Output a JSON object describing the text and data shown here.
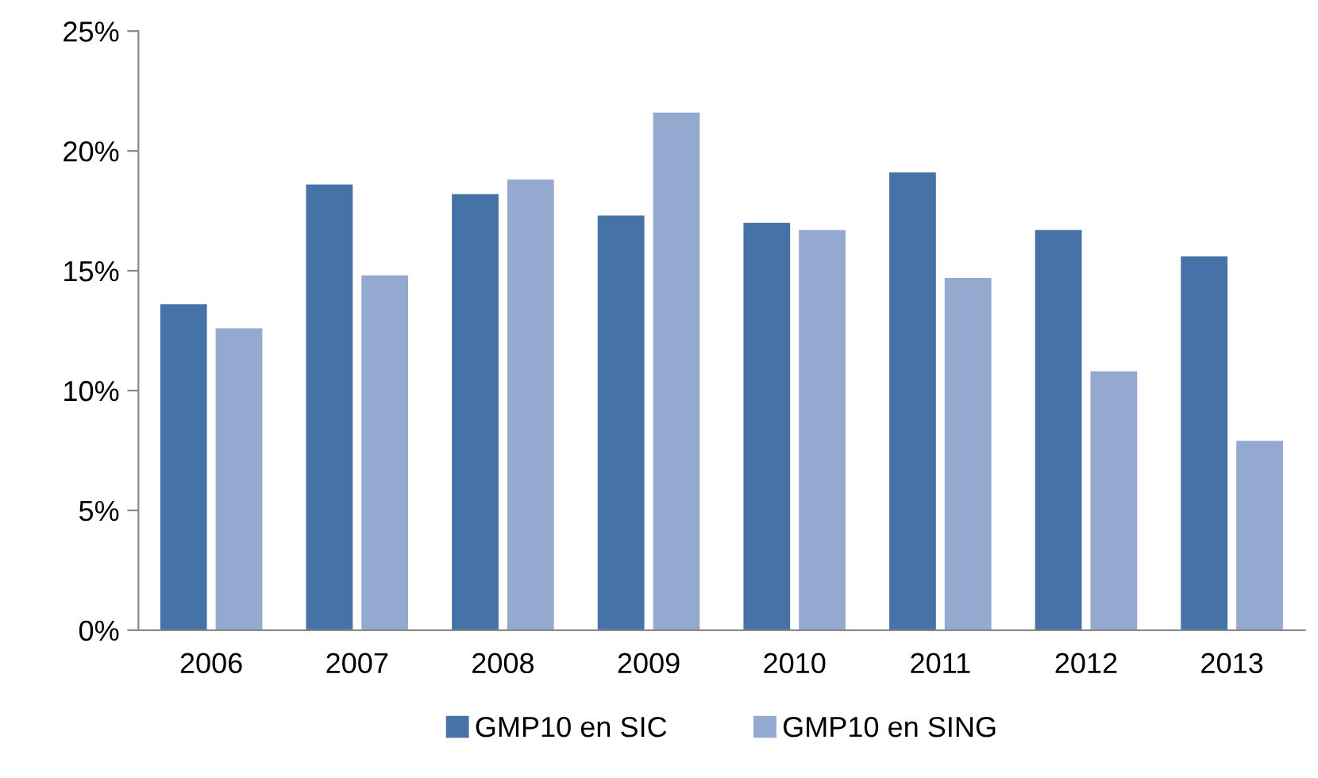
{
  "chart_data": {
    "type": "bar",
    "categories": [
      "2006",
      "2007",
      "2008",
      "2009",
      "2010",
      "2011",
      "2012",
      "2013"
    ],
    "series": [
      {
        "name": "GMP10 en SIC",
        "color": "#4572a7",
        "values": [
          13.6,
          18.6,
          18.2,
          17.3,
          17.0,
          19.1,
          16.7,
          15.6
        ]
      },
      {
        "name": "GMP10 en SING",
        "color": "#93a9cf",
        "values": [
          12.6,
          14.8,
          18.8,
          21.6,
          16.7,
          14.7,
          10.8,
          7.9
        ]
      }
    ],
    "ylim": [
      0,
      25
    ],
    "yticks": [
      {
        "value": 0,
        "label": "0%"
      },
      {
        "value": 5,
        "label": "5%"
      },
      {
        "value": 10,
        "label": "10%"
      },
      {
        "value": 15,
        "label": "15%"
      },
      {
        "value": 20,
        "label": "20%"
      },
      {
        "value": 25,
        "label": "25%"
      }
    ],
    "grid": false,
    "legend": "bottom"
  }
}
